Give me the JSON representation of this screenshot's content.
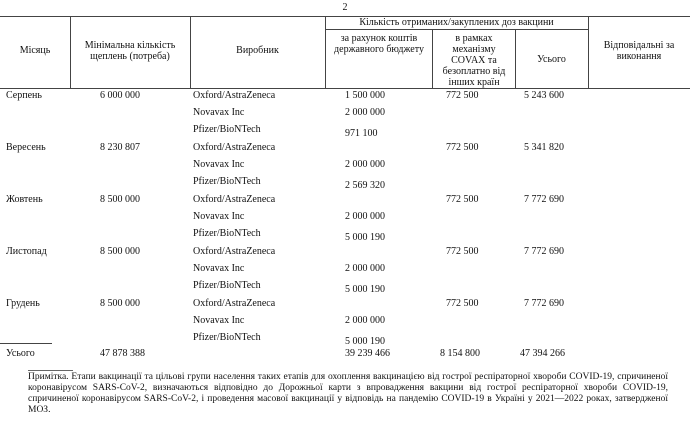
{
  "page_number": "2",
  "table": {
    "headers": {
      "month": "Місяць",
      "minimum": "Мінімальна кількість щеплень (потреба)",
      "manufacturer": "Виробник",
      "doses_group": "Кількість отриманих/закуплених доз вакцини",
      "budget": "за рахунок коштів державного бюджету",
      "covax": "в рамках механізму COVAX та безоплатно від інших країн",
      "total": "Усього",
      "responsible": "Відповідальні за виконання"
    },
    "rows": [
      {
        "month": "Серпень",
        "minimum": "6 000 000",
        "covax": "772 500",
        "total": "5 243 600",
        "producers": [
          {
            "name": "Oxford/AstraZeneca",
            "budget": "1 500 000"
          },
          {
            "name": "Novavax Inc",
            "budget": "2 000 000"
          },
          {
            "name": "Pfizer/BioNTech",
            "budget": "971 100"
          }
        ]
      },
      {
        "month": "Вересень",
        "minimum": "8 230 807",
        "covax": "772 500",
        "total": "5 341 820",
        "producers": [
          {
            "name": "Oxford/AstraZeneca"
          },
          {
            "name": "Novavax Inc",
            "budget": "2 000 000"
          },
          {
            "name": "Pfizer/BioNTech",
            "budget": "2 569 320"
          }
        ]
      },
      {
        "month": "Жовтень",
        "minimum": "8 500 000",
        "covax": "772 500",
        "total": "7 772 690",
        "producers": [
          {
            "name": "Oxford/AstraZeneca"
          },
          {
            "name": "Novavax Inc",
            "budget": "2 000 000"
          },
          {
            "name": "Pfizer/BioNTech",
            "budget": "5 000 190"
          }
        ]
      },
      {
        "month": "Листопад",
        "minimum": "8 500 000",
        "covax": "772 500",
        "total": "7 772 690",
        "producers": [
          {
            "name": "Oxford/AstraZeneca"
          },
          {
            "name": "Novavax Inc",
            "budget": "2 000 000"
          },
          {
            "name": "Pfizer/BioNTech",
            "budget": "5 000 190"
          }
        ]
      },
      {
        "month": "Грудень",
        "minimum": "8 500 000",
        "covax": "772 500",
        "total": "7 772 690",
        "producers": [
          {
            "name": "Oxford/AstraZeneca"
          },
          {
            "name": "Novavax Inc",
            "budget": "2 000 000"
          },
          {
            "name": "Pfizer/BioNTech",
            "budget": "5 000 190"
          }
        ]
      }
    ],
    "totals": {
      "label": "Усього",
      "minimum": "47 878 388",
      "budget": "39 239 466",
      "covax": "8 154 800",
      "total": "47 394 266"
    }
  },
  "note": {
    "label": "Примітка.",
    "text": "Етапи вакцинації та цільові групи населення таких етапів для охоплення вакцинацією від гострої респіраторної хвороби COVID-19, спричиненої коронавірусом SARS-CoV-2, визначаються відповідно до Дорожньої карти з впровадження вакцини від гострої респіраторної хвороби COVID-19, спричиненої коронавірусом SARS-CoV-2, і проведення масової вакцинації у відповідь на пандемію COVID-19 в Україні у 2021—2022 роках, затвердженої МОЗ."
  }
}
